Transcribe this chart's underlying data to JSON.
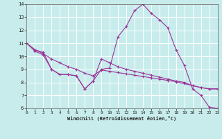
{
  "xlabel": "Windchill (Refroidissement éolien,°C)",
  "background_color": "#c8ecec",
  "line_color": "#993399",
  "grid_color": "#ffffff",
  "xlim": [
    0,
    23
  ],
  "ylim": [
    6,
    14
  ],
  "xticks": [
    0,
    1,
    2,
    3,
    4,
    5,
    6,
    7,
    8,
    9,
    10,
    11,
    12,
    13,
    14,
    15,
    16,
    17,
    18,
    19,
    20,
    21,
    22,
    23
  ],
  "yticks": [
    6,
    7,
    8,
    9,
    10,
    11,
    12,
    13,
    14
  ],
  "line1_y": [
    11.0,
    10.5,
    10.3,
    9.0,
    8.6,
    8.6,
    8.5,
    7.5,
    8.1,
    9.0,
    9.1,
    11.5,
    12.3,
    13.5,
    14.0,
    13.3,
    12.8,
    12.2,
    10.5,
    9.3,
    7.5,
    7.0,
    6.1,
    6.0
  ],
  "line2_y": [
    11.0,
    10.5,
    10.2,
    9.8,
    9.5,
    9.2,
    9.0,
    8.7,
    8.5,
    8.95,
    8.85,
    8.75,
    8.65,
    8.55,
    8.45,
    8.35,
    8.25,
    8.15,
    8.05,
    7.9,
    7.75,
    7.6,
    7.5,
    7.5
  ],
  "line3_y": [
    11.0,
    10.4,
    10.1,
    9.0,
    8.6,
    8.6,
    8.5,
    7.5,
    8.1,
    9.8,
    9.5,
    9.2,
    9.0,
    8.85,
    8.7,
    8.55,
    8.4,
    8.25,
    8.1,
    8.0,
    7.75,
    7.6,
    7.5,
    7.5
  ]
}
